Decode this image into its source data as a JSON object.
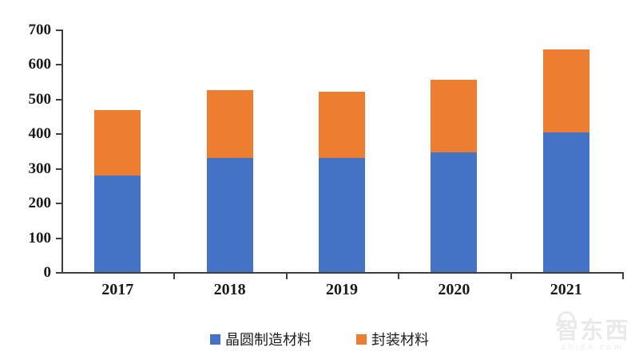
{
  "watermark": {
    "logo_text": "智东西",
    "site_text": "zhidx.com"
  },
  "chart_data": {
    "type": "bar",
    "stacked": true,
    "title": "",
    "xlabel": "",
    "ylabel": "",
    "categories": [
      "2017",
      "2018",
      "2019",
      "2020",
      "2021"
    ],
    "series": [
      {
        "name": "晶圆制造材料",
        "color": "#4472C4",
        "values": [
          278,
          329,
          329,
          346,
          404
        ]
      },
      {
        "name": "封装材料",
        "color": "#ED7D31",
        "values": [
          189,
          196,
          191,
          208,
          239
        ]
      }
    ],
    "totals": [
      467,
      525,
      520,
      554,
      643
    ],
    "ylim": [
      0,
      700
    ],
    "ytick_step": 100,
    "ytick_labels": [
      "0",
      "100",
      "200",
      "300",
      "400",
      "500",
      "600",
      "700"
    ],
    "grid": false,
    "legend_position": "bottom-center",
    "axis_color": "#3f3f3f",
    "text_color": "#1a1a1a",
    "background_color": "#ffffff"
  }
}
